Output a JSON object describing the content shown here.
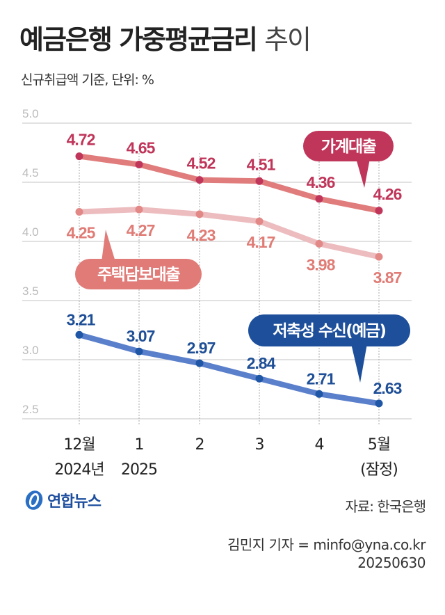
{
  "header": {
    "title": "예금은행 가중평균금리",
    "title_suffix": "추이",
    "subtitle": "신규취급액 기준, 단위: %"
  },
  "chart_data": {
    "type": "line",
    "title": "예금은행 가중평균금리 추이",
    "ylabel": "신규취급액 기준, 단위: %",
    "ylim": [
      2.5,
      5.0
    ],
    "yticks": [
      "5.0",
      "4.5",
      "4.0",
      "3.5",
      "3.0",
      "2.5"
    ],
    "ytick_values": [
      5.0,
      4.5,
      4.0,
      3.5,
      3.0,
      2.5
    ],
    "grid": true,
    "categories": [
      {
        "line1": "12월",
        "line2": "2024년"
      },
      {
        "line1": "1",
        "line2": "2025"
      },
      {
        "line1": "2",
        "line2": ""
      },
      {
        "line1": "3",
        "line2": ""
      },
      {
        "line1": "4",
        "line2": ""
      },
      {
        "line1": "5월",
        "line2": "(잠정)"
      }
    ],
    "series": [
      {
        "name": "가계대출",
        "values": [
          4.72,
          4.65,
          4.52,
          4.51,
          4.36,
          4.26
        ],
        "labels": [
          "4.72",
          "4.65",
          "4.52",
          "4.51",
          "4.36",
          "4.26"
        ],
        "line_color": "#e07c7c",
        "dot_color": "#c0365a",
        "label_color": "#c0365a"
      },
      {
        "name": "주택담보대출",
        "values": [
          4.25,
          4.27,
          4.23,
          4.17,
          3.98,
          3.87
        ],
        "labels": [
          "4.25",
          "4.27",
          "4.23",
          "4.17",
          "3.98",
          "3.87"
        ],
        "line_color": "#ecbcbf",
        "dot_color": "#e28886",
        "label_color": "#e07c76"
      },
      {
        "name": "저축성 수신(예금)",
        "values": [
          3.21,
          3.07,
          2.97,
          2.84,
          2.71,
          2.63
        ],
        "labels": [
          "3.21",
          "3.07",
          "2.97",
          "2.84",
          "2.71",
          "2.63"
        ],
        "line_color": "#5a7fcb",
        "dot_color": "#1f56a5",
        "label_color": "#1f4f96"
      }
    ]
  },
  "footer": {
    "logo_text": "연합뉴스",
    "source": "자료: 한국은행",
    "credit": "김민지 기자 = minfo@yna.co.kr",
    "date": "20250630"
  }
}
